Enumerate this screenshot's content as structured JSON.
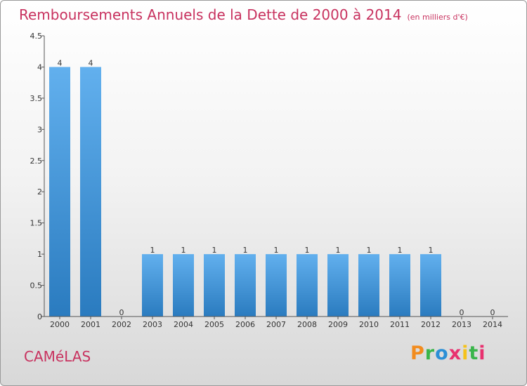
{
  "header": {
    "title": "Remboursements Annuels de la Dette de 2000 à 2014",
    "unit": "(en milliers d'€)"
  },
  "commune": "CAMéLAS",
  "logo": {
    "letters": [
      "P",
      "r",
      "o",
      "x",
      "i",
      "t",
      "i"
    ],
    "colors": [
      "#f28c1e",
      "#3ab54a",
      "#2b8fd6",
      "#e8316f",
      "#f5c21b",
      "#3ab54a",
      "#e8316f"
    ]
  },
  "colors": {
    "bar": "#4fa3e6",
    "bar_dark": "#2a7bbf",
    "title": "#c8325f"
  },
  "chart_data": {
    "type": "bar",
    "title": "Remboursements Annuels de la Dette de 2000 à 2014",
    "subtitle": "(en milliers d'€)",
    "categories": [
      "2000",
      "2001",
      "2002",
      "2003",
      "2004",
      "2005",
      "2006",
      "2007",
      "2008",
      "2009",
      "2010",
      "2011",
      "2012",
      "2013",
      "2014"
    ],
    "values": [
      4,
      4,
      0,
      1,
      1,
      1,
      1,
      1,
      1,
      1,
      1,
      1,
      1,
      0,
      0
    ],
    "value_labels": [
      "4",
      "4",
      "0",
      "1",
      "1",
      "1",
      "1",
      "1",
      "1",
      "1",
      "1",
      "1",
      "1",
      "0",
      "0"
    ],
    "yticks": [
      "0",
      "0.5",
      "1",
      "1.5",
      "2",
      "2.5",
      "3",
      "3.5",
      "4",
      "4.5"
    ],
    "ylim": [
      0,
      4.5
    ],
    "grid": false,
    "legend": "none"
  }
}
